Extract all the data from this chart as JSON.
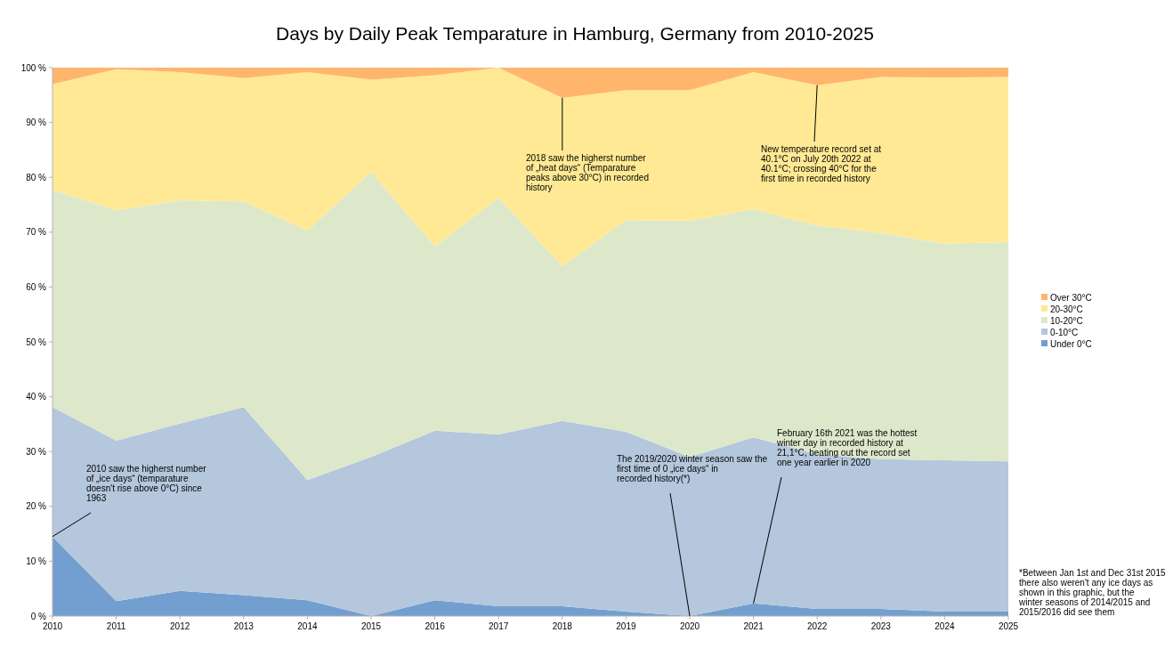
{
  "chart_data": {
    "type": "area",
    "stacked": true,
    "title": "Days by Daily Peak Temparature in Hamburg, Germany from 2010-2025",
    "x": [
      2010,
      2011,
      2012,
      2013,
      2014,
      2015,
      2016,
      2017,
      2018,
      2019,
      2020,
      2021,
      2022,
      2023,
      2024,
      2025
    ],
    "xlim": [
      2010,
      2025
    ],
    "xticks": [
      2010,
      2011,
      2012,
      2013,
      2014,
      2015,
      2016,
      2017,
      2018,
      2019,
      2020,
      2021,
      2022,
      2023,
      2024,
      2025
    ],
    "ylim": [
      0,
      100
    ],
    "yticks": [
      {
        "value": 0,
        "label": "0 %"
      },
      {
        "value": 10,
        "label": "10 %"
      },
      {
        "value": 20,
        "label": "20 %"
      },
      {
        "value": 30,
        "label": "30 %"
      },
      {
        "value": 40,
        "label": "40 %"
      },
      {
        "value": 50,
        "label": "50 %"
      },
      {
        "value": 60,
        "label": "60 %"
      },
      {
        "value": 70,
        "label": "70 %"
      },
      {
        "value": 80,
        "label": "80 %"
      },
      {
        "value": 90,
        "label": "90 %"
      },
      {
        "value": 100,
        "label": "100 %"
      }
    ],
    "series": [
      {
        "name": "Under 0°C",
        "color": "#729fcf",
        "values": [
          14.5,
          2.7,
          4.6,
          3.8,
          2.9,
          0,
          2.9,
          1.8,
          1.8,
          0.8,
          0,
          2.3,
          1.3,
          1.3,
          0.8,
          0.8
        ]
      },
      {
        "name": "0-10°C",
        "color": "#b4c7dc",
        "values": [
          23.6,
          29.3,
          30.5,
          34.3,
          21.9,
          29,
          30.9,
          31.3,
          33.8,
          32.8,
          29,
          30.3,
          28.2,
          27.3,
          27.6,
          27.4
        ]
      },
      {
        "name": "10-20°C",
        "color": "#dde8cb",
        "values": [
          39.6,
          42,
          40.7,
          37.5,
          45.5,
          52,
          33.6,
          43.2,
          28.2,
          38.6,
          43.1,
          41.6,
          41.7,
          41.3,
          39.5,
          40
        ]
      },
      {
        "name": "20-30°C",
        "color": "#ffe994",
        "values": [
          19.3,
          25.7,
          23.4,
          22.5,
          28.9,
          16.8,
          31.2,
          23.7,
          30.7,
          23.7,
          23.8,
          25,
          25.6,
          28.4,
          30.3,
          30.1
        ]
      },
      {
        "name": "Over 30°C",
        "color": "#ffb66c",
        "values": [
          3,
          0.3,
          0.8,
          1.9,
          0.8,
          2.2,
          1.4,
          0,
          5.5,
          4.1,
          4.1,
          0.8,
          3.2,
          1.7,
          1.8,
          1.7
        ]
      }
    ],
    "legend": "right",
    "grid": false,
    "annotations": [
      {
        "text": "2010 saw the higherst number of „ice days“ (temparature doesn't rise above 0°C) since 1963",
        "x": 2010,
        "y": 14.5
      },
      {
        "text": "2018 saw the higherst number of „heat days“ (Temparature peaks above 30°C) in recorded history",
        "x": 2018,
        "y": 94.5
      },
      {
        "text": "New temperature record set at 40.1°C on July 20th 2022 at 40.1°C; crossing 40°C for the first time in recorded history",
        "x": 2022,
        "y": 96.8
      },
      {
        "text": "The 2019/2020 winter season saw the first time of 0 „ice days“ in recorded history(*)",
        "x": 2020,
        "y": 0
      },
      {
        "text": "February 16th 2021 was the hottest winter day in recorded history at 21,1°C, beating out the record set one year earlier in 2020",
        "x": 2021,
        "y": 2.3
      },
      "*Between Jan 1st and Dec 31st 2015 there also weren't any ice days as shown in this graphic, but the winter seasons of 2014/2015 and 2015/2016 did see them"
    ]
  }
}
